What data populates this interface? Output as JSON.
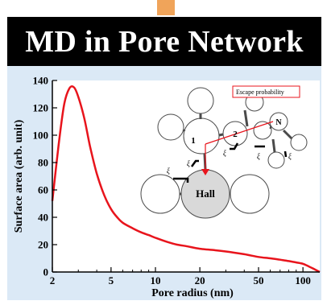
{
  "header": {
    "title": "MD in Pore Network"
  },
  "colors": {
    "curve": "#e8141c",
    "title_bg": "#000000",
    "plot_bg": "#dbe9f6",
    "accent": "#f0a45a",
    "pore_fill": "#ffffff",
    "hall_fill": "#d9d9d9"
  },
  "chart_data": {
    "type": "line",
    "title": "",
    "xlabel": "Pore radius (nm)",
    "ylabel": "Surface area (arb. unit)",
    "xscale": "log",
    "xlim": [
      2,
      130
    ],
    "ylim": [
      0,
      140
    ],
    "x_ticks": [
      "2",
      "5",
      "10",
      "20",
      "50",
      "100"
    ],
    "y_ticks": [
      "0",
      "20",
      "40",
      "60",
      "80",
      "100",
      "120",
      "140"
    ],
    "grid": false,
    "series": [
      {
        "color": "#e8141c",
        "x": [
          2.0,
          2.2,
          2.4,
          2.6,
          2.8,
          3.0,
          3.3,
          3.6,
          4.0,
          4.5,
          5.0,
          5.5,
          6.0,
          7.0,
          8.0,
          9.0,
          10,
          12,
          14,
          16,
          20,
          25,
          30,
          40,
          50,
          60,
          70,
          80,
          90,
          100,
          110,
          120,
          130
        ],
        "y": [
          52,
          92,
          122,
          134,
          135,
          128,
          112,
          92,
          72,
          56,
          46,
          40,
          36,
          32,
          29,
          27,
          25,
          22,
          20,
          19,
          17,
          16,
          15,
          13,
          11,
          10,
          9,
          8,
          7,
          6,
          4,
          2,
          0
        ]
      }
    ]
  },
  "diagram": {
    "legend_label": "Escape probability",
    "pore_labels": {
      "pore1": "1",
      "pore2": "2",
      "poreN": "N",
      "hall": "Hall"
    },
    "xi_symbol": "ξ"
  }
}
